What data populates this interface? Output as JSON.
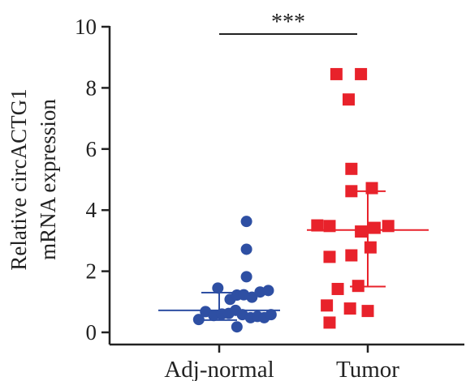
{
  "chart_data": {
    "type": "scatter",
    "subtype": "dot-plot-with-mean-sd",
    "ylabel_lines": [
      "Relative circACTG1",
      "mRNA expression"
    ],
    "ylim": [
      0,
      10
    ],
    "yticks": [
      0,
      2,
      4,
      6,
      8,
      10
    ],
    "categories": [
      "Adj-normal",
      "Tumor"
    ],
    "significance": {
      "label": "***",
      "between": [
        "Adj-normal",
        "Tumor"
      ]
    },
    "grid": false,
    "legend": "none",
    "series": [
      {
        "category": "Adj-normal",
        "marker": "circle",
        "color": "#2E4FA3",
        "mean": 0.72,
        "error_low": 0.4,
        "error_high": 1.3,
        "points": [
          {
            "offset": -0.15,
            "y": 0.42
          },
          {
            "offset": -0.1,
            "y": 0.68
          },
          {
            "offset": -0.04,
            "y": 0.55
          },
          {
            "offset": 0.02,
            "y": 0.6
          },
          {
            "offset": 0.07,
            "y": 0.62
          },
          {
            "offset": 0.12,
            "y": 0.72
          },
          {
            "offset": 0.17,
            "y": 0.58
          },
          {
            "offset": 0.23,
            "y": 0.48
          },
          {
            "offset": 0.28,
            "y": 0.52
          },
          {
            "offset": 0.33,
            "y": 0.48
          },
          {
            "offset": 0.38,
            "y": 0.58
          },
          {
            "offset": 0.13,
            "y": 0.18
          },
          {
            "offset": -0.01,
            "y": 1.45
          },
          {
            "offset": 0.08,
            "y": 1.08
          },
          {
            "offset": 0.13,
            "y": 1.22
          },
          {
            "offset": 0.18,
            "y": 1.23
          },
          {
            "offset": 0.24,
            "y": 1.15
          },
          {
            "offset": 0.3,
            "y": 1.32
          },
          {
            "offset": 0.36,
            "y": 1.37
          },
          {
            "offset": 0.2,
            "y": 1.82
          },
          {
            "offset": 0.2,
            "y": 2.72
          },
          {
            "offset": 0.2,
            "y": 3.63
          }
        ]
      },
      {
        "category": "Tumor",
        "marker": "square",
        "color": "#E8222B",
        "mean": 3.35,
        "error_low": 1.5,
        "error_high": 4.62,
        "points": [
          {
            "offset": -0.37,
            "y": 3.5
          },
          {
            "offset": -0.28,
            "y": 3.48
          },
          {
            "offset": -0.05,
            "y": 3.3
          },
          {
            "offset": 0.05,
            "y": 3.42
          },
          {
            "offset": 0.15,
            "y": 3.48
          },
          {
            "offset": -0.23,
            "y": 8.45
          },
          {
            "offset": -0.05,
            "y": 8.45
          },
          {
            "offset": -0.14,
            "y": 7.62
          },
          {
            "offset": -0.12,
            "y": 5.35
          },
          {
            "offset": -0.12,
            "y": 4.62
          },
          {
            "offset": 0.03,
            "y": 4.72
          },
          {
            "offset": 0.02,
            "y": 2.78
          },
          {
            "offset": -0.28,
            "y": 2.47
          },
          {
            "offset": -0.12,
            "y": 2.52
          },
          {
            "offset": -0.22,
            "y": 1.42
          },
          {
            "offset": -0.07,
            "y": 1.52
          },
          {
            "offset": -0.3,
            "y": 0.88
          },
          {
            "offset": -0.13,
            "y": 0.78
          },
          {
            "offset": 0.0,
            "y": 0.7
          },
          {
            "offset": -0.28,
            "y": 0.32
          }
        ]
      }
    ]
  }
}
